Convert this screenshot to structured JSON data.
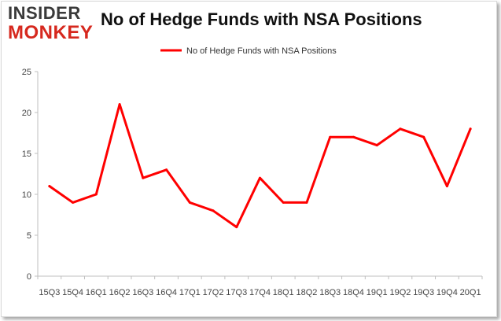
{
  "logo": {
    "top": "INSIDER",
    "bottom": "MONKEY"
  },
  "chart_data": {
    "type": "line",
    "title": "No of Hedge Funds with NSA Positions",
    "xlabel": "",
    "ylabel": "",
    "categories": [
      "15Q3",
      "15Q4",
      "16Q1",
      "16Q2",
      "16Q3",
      "16Q4",
      "17Q1",
      "17Q2",
      "17Q3",
      "17Q4",
      "18Q1",
      "18Q2",
      "18Q3",
      "18Q4",
      "19Q1",
      "19Q2",
      "19Q3",
      "19Q4",
      "20Q1"
    ],
    "series": [
      {
        "name": "No of Hedge Funds with NSA Positions",
        "color": "#ff0000",
        "values": [
          11,
          9,
          10,
          21,
          12,
          13,
          9,
          8,
          6,
          12,
          9,
          9,
          17,
          17,
          16,
          18,
          17,
          11,
          18
        ]
      }
    ],
    "ylim": [
      0,
      25
    ],
    "yticks": [
      0,
      5,
      10,
      15,
      20,
      25
    ],
    "grid": false,
    "legend_position": "top"
  }
}
